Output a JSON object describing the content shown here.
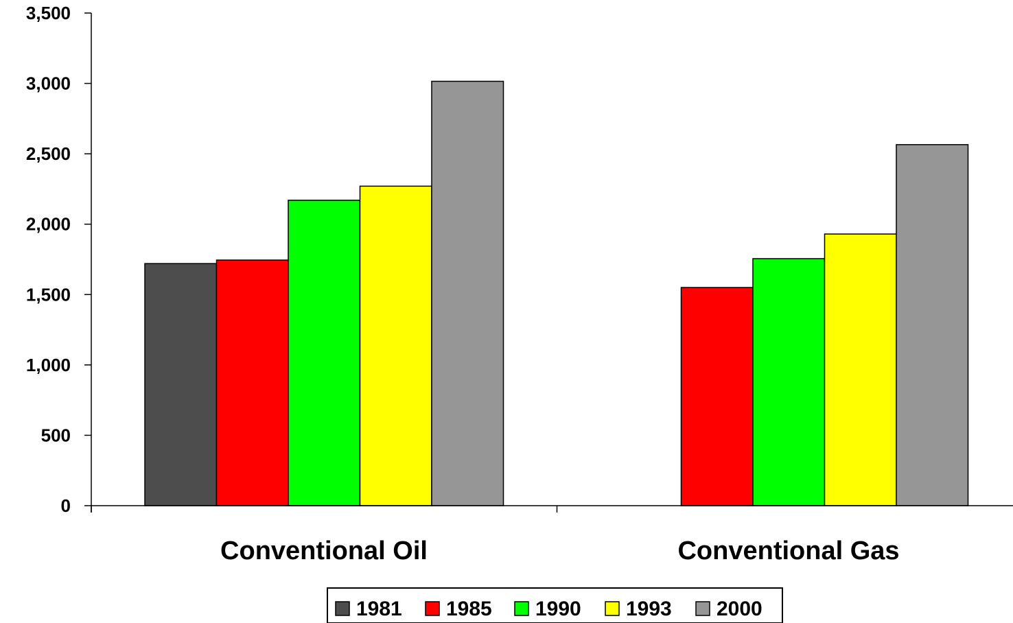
{
  "chart_data": {
    "type": "bar",
    "title": "",
    "xlabel": "",
    "ylabel": "",
    "categories": [
      "Conventional Oil",
      "Conventional Gas"
    ],
    "series": [
      {
        "name": "1981",
        "values": [
          1720,
          null
        ],
        "color": "#4d4d4d"
      },
      {
        "name": "1985",
        "values": [
          1745,
          1550
        ],
        "color": "#ff0000"
      },
      {
        "name": "1990",
        "values": [
          2170,
          1755
        ],
        "color": "#00ff00"
      },
      {
        "name": "1993",
        "values": [
          2270,
          1930
        ],
        "color": "#ffff00"
      },
      {
        "name": "2000",
        "values": [
          3015,
          2565
        ],
        "color": "#969696"
      }
    ],
    "ylim": [
      0,
      3500
    ],
    "yticks": [
      0,
      500,
      1000,
      1500,
      2000,
      2500,
      3000,
      3500
    ],
    "ytick_labels": [
      "0",
      "500",
      "1,000",
      "1,500",
      "2,000",
      "2,500",
      "3,000",
      "3,500"
    ],
    "grid": false,
    "legend_position": "bottom"
  }
}
